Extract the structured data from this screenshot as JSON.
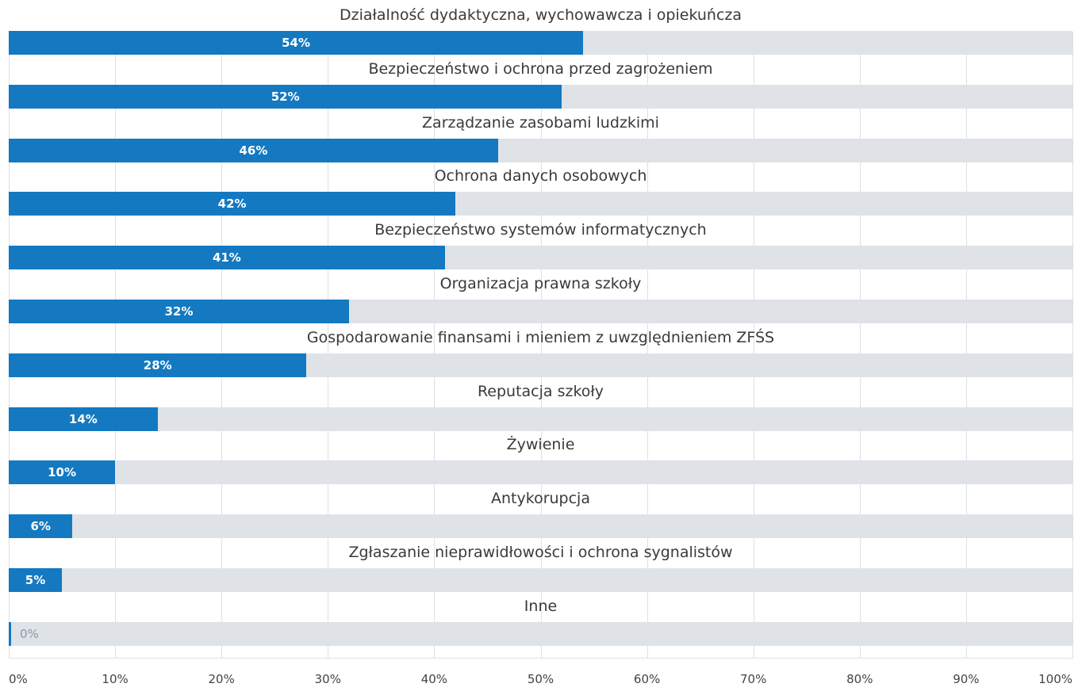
{
  "chart_data": {
    "type": "bar",
    "orientation": "horizontal",
    "categories": [
      "Działalność dydaktyczna, wychowawcza i opiekuńcza",
      "Bezpieczeństwo i ochrona przed zagrożeniem",
      "Zarządzanie zasobami ludzkimi",
      "Ochrona danych osobowych",
      "Bezpieczeństwo systemów informatycznych",
      "Organizacja prawna szkoły",
      "Gospodarowanie finansami i mieniem z uwzględnieniem ZFŚS",
      "Reputacja szkoły",
      "Żywienie",
      "Antykorupcja",
      "Zgłaszanie nieprawidłowości i ochrona sygnalistów",
      "Inne"
    ],
    "values": [
      54,
      52,
      46,
      42,
      41,
      32,
      28,
      14,
      10,
      6,
      5,
      0
    ],
    "value_labels": [
      "54%",
      "52%",
      "46%",
      "42%",
      "41%",
      "32%",
      "28%",
      "14%",
      "10%",
      "6%",
      "5%",
      "0%"
    ],
    "xlim": [
      0,
      100
    ],
    "x_ticks": [
      "0%",
      "10%",
      "20%",
      "30%",
      "40%",
      "50%",
      "60%",
      "70%",
      "80%",
      "90%",
      "100%"
    ],
    "grid": true,
    "colors": {
      "bar": "#1479c1",
      "track": "#dfe2e7"
    }
  }
}
